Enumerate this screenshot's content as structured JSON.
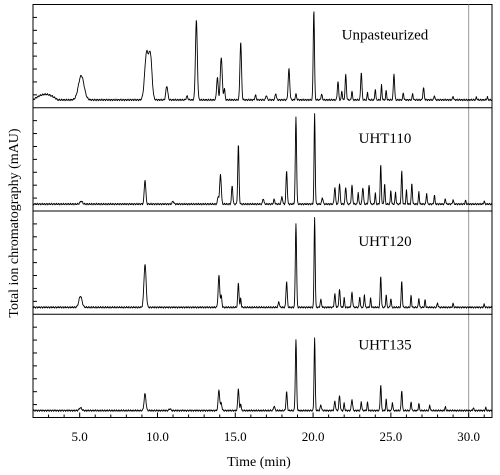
{
  "chart_data": {
    "type": "line",
    "xlabel": "Time (min)",
    "ylabel": "Total ion chromatography (mAU)",
    "xlim": [
      2,
      31.5
    ],
    "x_ticks": [
      "5.0",
      "10.0",
      "15.0",
      "20.0",
      "25.0",
      "30.0"
    ],
    "x_tick_values": [
      5,
      10,
      15,
      20,
      25,
      30
    ],
    "reference_line_x": 30,
    "stacked_panels": 4,
    "y_tick_labels_shown": false,
    "series": [
      {
        "name": "Unpasteurized",
        "baseline": 0.02,
        "hump": [
          2.0,
          3.6,
          0.06
        ],
        "peaks": [
          [
            5.1,
            0.26,
            0.18
          ],
          [
            9.3,
            0.5,
            0.12
          ],
          [
            9.55,
            0.45,
            0.1
          ],
          [
            10.6,
            0.15,
            0.06
          ],
          [
            11.9,
            0.04,
            0.05
          ],
          [
            12.5,
            0.85,
            0.06
          ],
          [
            13.85,
            0.24,
            0.05
          ],
          [
            14.1,
            0.46,
            0.06
          ],
          [
            14.3,
            0.12,
            0.04
          ],
          [
            15.35,
            0.62,
            0.05
          ],
          [
            16.3,
            0.05,
            0.04
          ],
          [
            17.0,
            0.05,
            0.04
          ],
          [
            17.6,
            0.07,
            0.04
          ],
          [
            18.45,
            0.33,
            0.05
          ],
          [
            18.9,
            0.06,
            0.04
          ],
          [
            20.05,
            0.97,
            0.04
          ],
          [
            20.55,
            0.06,
            0.04
          ],
          [
            21.6,
            0.2,
            0.04
          ],
          [
            21.85,
            0.1,
            0.03
          ],
          [
            22.1,
            0.27,
            0.04
          ],
          [
            22.5,
            0.1,
            0.03
          ],
          [
            23.1,
            0.3,
            0.04
          ],
          [
            23.5,
            0.08,
            0.03
          ],
          [
            24.0,
            0.12,
            0.03
          ],
          [
            24.4,
            0.16,
            0.03
          ],
          [
            24.7,
            0.1,
            0.03
          ],
          [
            25.2,
            0.28,
            0.04
          ],
          [
            25.8,
            0.08,
            0.03
          ],
          [
            26.4,
            0.07,
            0.03
          ],
          [
            27.1,
            0.13,
            0.04
          ],
          [
            27.8,
            0.05,
            0.03
          ],
          [
            29.0,
            0.04,
            0.03
          ],
          [
            30.5,
            0.03,
            0.03
          ],
          [
            31.2,
            0.03,
            0.03
          ]
        ]
      },
      {
        "name": "UHT110",
        "baseline": 0.01,
        "peaks": [
          [
            5.1,
            0.03,
            0.08
          ],
          [
            9.2,
            0.26,
            0.05
          ],
          [
            11.0,
            0.03,
            0.05
          ],
          [
            13.9,
            0.08,
            0.04
          ],
          [
            14.05,
            0.32,
            0.05
          ],
          [
            14.8,
            0.2,
            0.04
          ],
          [
            15.2,
            0.64,
            0.04
          ],
          [
            16.8,
            0.06,
            0.04
          ],
          [
            17.5,
            0.05,
            0.04
          ],
          [
            18.0,
            0.08,
            0.04
          ],
          [
            18.3,
            0.36,
            0.04
          ],
          [
            18.9,
            0.93,
            0.04
          ],
          [
            20.1,
            0.97,
            0.035
          ],
          [
            20.6,
            0.07,
            0.04
          ],
          [
            21.4,
            0.18,
            0.04
          ],
          [
            21.7,
            0.22,
            0.04
          ],
          [
            22.1,
            0.18,
            0.04
          ],
          [
            22.5,
            0.2,
            0.04
          ],
          [
            22.9,
            0.13,
            0.03
          ],
          [
            23.2,
            0.18,
            0.04
          ],
          [
            23.6,
            0.2,
            0.04
          ],
          [
            24.0,
            0.12,
            0.03
          ],
          [
            24.35,
            0.42,
            0.035
          ],
          [
            24.6,
            0.22,
            0.03
          ],
          [
            25.0,
            0.15,
            0.03
          ],
          [
            25.3,
            0.13,
            0.03
          ],
          [
            25.7,
            0.35,
            0.035
          ],
          [
            26.0,
            0.15,
            0.03
          ],
          [
            26.35,
            0.22,
            0.035
          ],
          [
            26.8,
            0.13,
            0.03
          ],
          [
            27.3,
            0.12,
            0.03
          ],
          [
            27.8,
            0.1,
            0.03
          ],
          [
            28.5,
            0.06,
            0.03
          ],
          [
            29.0,
            0.05,
            0.03
          ],
          [
            29.8,
            0.04,
            0.03
          ],
          [
            31.0,
            0.03,
            0.03
          ]
        ]
      },
      {
        "name": "UHT120",
        "baseline": 0.01,
        "peaks": [
          [
            5.05,
            0.12,
            0.1
          ],
          [
            9.2,
            0.46,
            0.07
          ],
          [
            13.95,
            0.34,
            0.05
          ],
          [
            14.1,
            0.12,
            0.04
          ],
          [
            15.2,
            0.26,
            0.04
          ],
          [
            15.35,
            0.1,
            0.03
          ],
          [
            17.8,
            0.06,
            0.04
          ],
          [
            18.3,
            0.28,
            0.04
          ],
          [
            18.9,
            0.9,
            0.04
          ],
          [
            20.1,
            0.97,
            0.035
          ],
          [
            20.5,
            0.08,
            0.04
          ],
          [
            21.4,
            0.14,
            0.04
          ],
          [
            21.7,
            0.19,
            0.04
          ],
          [
            22.0,
            0.1,
            0.03
          ],
          [
            22.5,
            0.16,
            0.04
          ],
          [
            23.0,
            0.12,
            0.03
          ],
          [
            23.3,
            0.14,
            0.03
          ],
          [
            23.7,
            0.1,
            0.03
          ],
          [
            24.35,
            0.34,
            0.035
          ],
          [
            24.7,
            0.14,
            0.03
          ],
          [
            25.0,
            0.1,
            0.03
          ],
          [
            25.7,
            0.28,
            0.035
          ],
          [
            26.3,
            0.13,
            0.03
          ],
          [
            26.8,
            0.1,
            0.03
          ],
          [
            27.2,
            0.08,
            0.03
          ],
          [
            28.0,
            0.05,
            0.03
          ],
          [
            29.0,
            0.04,
            0.03
          ],
          [
            31.0,
            0.03,
            0.03
          ]
        ]
      },
      {
        "name": "UHT135",
        "baseline": 0.01,
        "peaks": [
          [
            5.05,
            0.03,
            0.08
          ],
          [
            9.2,
            0.18,
            0.06
          ],
          [
            10.8,
            0.02,
            0.05
          ],
          [
            13.95,
            0.22,
            0.05
          ],
          [
            14.1,
            0.08,
            0.04
          ],
          [
            15.2,
            0.24,
            0.04
          ],
          [
            15.35,
            0.08,
            0.03
          ],
          [
            17.5,
            0.05,
            0.04
          ],
          [
            18.3,
            0.2,
            0.04
          ],
          [
            18.9,
            0.76,
            0.04
          ],
          [
            20.1,
            0.78,
            0.035
          ],
          [
            20.5,
            0.06,
            0.04
          ],
          [
            21.4,
            0.1,
            0.04
          ],
          [
            21.7,
            0.16,
            0.04
          ],
          [
            22.0,
            0.08,
            0.03
          ],
          [
            22.5,
            0.12,
            0.04
          ],
          [
            23.1,
            0.1,
            0.03
          ],
          [
            23.5,
            0.09,
            0.03
          ],
          [
            24.35,
            0.28,
            0.035
          ],
          [
            24.7,
            0.12,
            0.03
          ],
          [
            25.1,
            0.09,
            0.03
          ],
          [
            25.7,
            0.22,
            0.035
          ],
          [
            26.3,
            0.1,
            0.03
          ],
          [
            26.8,
            0.08,
            0.03
          ],
          [
            27.5,
            0.06,
            0.03
          ],
          [
            28.5,
            0.04,
            0.03
          ],
          [
            30.3,
            0.03,
            0.03
          ],
          [
            31.1,
            0.03,
            0.03
          ]
        ]
      }
    ]
  }
}
